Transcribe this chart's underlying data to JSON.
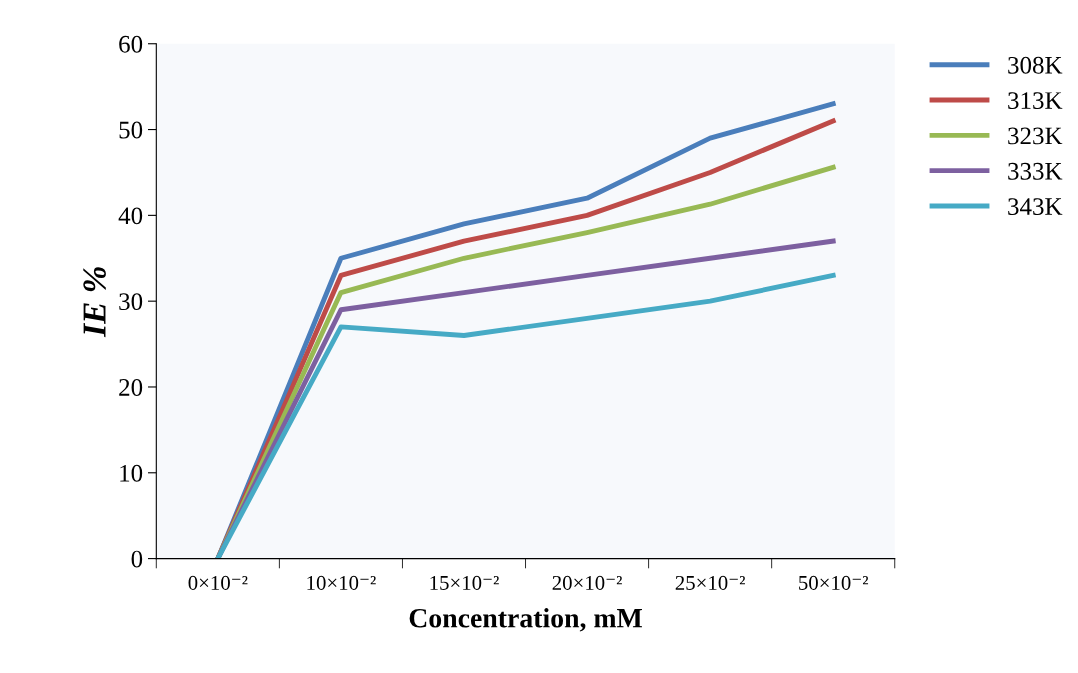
{
  "chart_data": {
    "type": "line",
    "xlabel": "Concentration, mM",
    "ylabel": "IE %",
    "categories": [
      "0×10⁻²",
      "10×10⁻²",
      "15×10⁻²",
      "20×10⁻²",
      "25×10⁻²",
      "50×10⁻²"
    ],
    "series": [
      {
        "name": "308K",
        "color": "#4a7ebb",
        "values": [
          0,
          35,
          39,
          42,
          49,
          53
        ]
      },
      {
        "name": "313K",
        "color": "#be4b48",
        "values": [
          0,
          33,
          37,
          40,
          45,
          51
        ]
      },
      {
        "name": "323K",
        "color": "#98b954",
        "values": [
          0,
          31,
          35,
          38,
          41.3,
          45.6
        ]
      },
      {
        "name": "333K",
        "color": "#7d60a0",
        "values": [
          0,
          29,
          31,
          33,
          35,
          37
        ]
      },
      {
        "name": "343K",
        "color": "#46aac5",
        "values": [
          0,
          27,
          26,
          28,
          30,
          33
        ]
      }
    ],
    "ylim": [
      0,
      60
    ],
    "yticks": [
      0,
      10,
      20,
      30,
      40,
      50,
      60
    ],
    "grid": false,
    "legend": "right",
    "marker": "none",
    "line_style": "solid"
  }
}
